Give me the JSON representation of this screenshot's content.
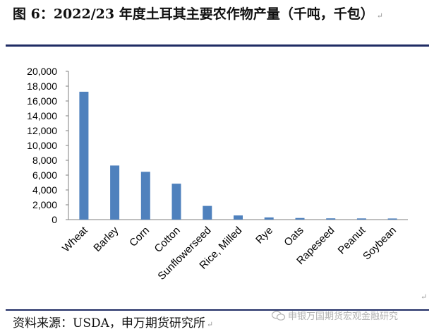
{
  "title": "图 6：2022/23 年度土耳其主要农作物产量（千吨，千包）",
  "source": "资料来源：USDA，申万期货研究所",
  "watermark": "申银万国期货宏观金融研究",
  "paragraph_mark": "↵",
  "chart_data": {
    "type": "bar",
    "categories": [
      "Wheat",
      "Barley",
      "Corn",
      "Cotton",
      "Sunflowerseed",
      "Rice, Milled",
      "Rye",
      "Oats",
      "Rapeseed",
      "Peanut",
      "Soybean"
    ],
    "values": [
      17250,
      7300,
      6450,
      4850,
      1850,
      560,
      300,
      220,
      170,
      160,
      150
    ],
    "yticks": [
      "0",
      "2,000",
      "4,000",
      "6,000",
      "8,000",
      "10,000",
      "12,000",
      "14,000",
      "16,000",
      "18,000",
      "20,000"
    ],
    "ylim": [
      0,
      20000
    ],
    "grid": false,
    "colors": {
      "bar": "#4f81bd",
      "axis": "#7f7f7f"
    }
  }
}
